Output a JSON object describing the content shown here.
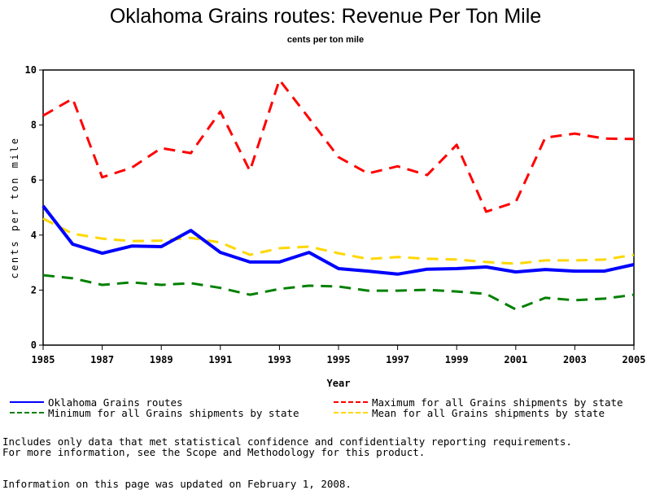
{
  "chart_data": {
    "type": "line",
    "title": "Oklahoma Grains routes: Revenue Per Ton Mile",
    "subtitle": "cents per ton mile",
    "xlabel": "Year",
    "ylabel": "cents per ton mile",
    "x": [
      1985,
      1986,
      1987,
      1988,
      1989,
      1990,
      1991,
      1992,
      1993,
      1994,
      1995,
      1996,
      1997,
      1998,
      1999,
      2000,
      2001,
      2002,
      2003,
      2004,
      2005
    ],
    "xlim": [
      1985,
      2005
    ],
    "ylim": [
      0,
      10
    ],
    "x_ticks": [
      1985,
      1987,
      1989,
      1991,
      1993,
      1995,
      1997,
      1999,
      2001,
      2003,
      2005
    ],
    "y_ticks": [
      0,
      2,
      4,
      6,
      8,
      10
    ],
    "grid": false,
    "legend_position": "bottom",
    "series": [
      {
        "name": "Oklahoma Grains routes",
        "color": "#0000ff",
        "style": "solid",
        "values": [
          5.06,
          3.67,
          3.34,
          3.6,
          3.58,
          4.17,
          3.37,
          3.02,
          3.02,
          3.37,
          2.78,
          2.69,
          2.58,
          2.76,
          2.78,
          2.84,
          2.66,
          2.75,
          2.69,
          2.69,
          2.93
        ]
      },
      {
        "name": "Maximum for all Grains shipments by state",
        "color": "#ff0000",
        "style": "dashed",
        "values": [
          8.34,
          8.96,
          6.1,
          6.45,
          7.16,
          6.98,
          8.49,
          6.33,
          9.64,
          8.25,
          6.83,
          6.24,
          6.5,
          6.18,
          7.28,
          4.85,
          5.2,
          7.54,
          7.69,
          7.51,
          7.49
        ]
      },
      {
        "name": "Minimum for all Grains shipments by state",
        "color": "#008000",
        "style": "dashed",
        "values": [
          2.54,
          2.43,
          2.19,
          2.28,
          2.19,
          2.25,
          2.08,
          1.83,
          2.04,
          2.16,
          2.13,
          1.98,
          1.98,
          2.01,
          1.95,
          1.86,
          1.3,
          1.72,
          1.63,
          1.69,
          1.83
        ]
      },
      {
        "name": "Mean for all Grains shipments by state",
        "color": "#ffd700",
        "style": "dashed",
        "values": [
          4.6,
          4.05,
          3.87,
          3.78,
          3.8,
          3.9,
          3.73,
          3.28,
          3.52,
          3.58,
          3.34,
          3.13,
          3.2,
          3.14,
          3.11,
          3.02,
          2.96,
          3.08,
          3.08,
          3.11,
          3.28
        ]
      }
    ]
  },
  "legend": {
    "items": [
      {
        "label": "Oklahoma Grains routes",
        "color": "#0000ff",
        "style": "solid"
      },
      {
        "label": "Maximum for all Grains shipments by state",
        "color": "#ff0000",
        "style": "dashed"
      },
      {
        "label": "Minimum for all Grains shipments by state",
        "color": "#008000",
        "style": "dashed"
      },
      {
        "label": "Mean for all Grains shipments by state",
        "color": "#ffd700",
        "style": "dashed"
      }
    ]
  },
  "notes": {
    "line1": "Includes only data that met statistical confidence and confidentialty reporting requirements.",
    "line2": "For more information, see the Scope and Methodology for this product.",
    "updated": "Information on this page was updated on February 1, 2008."
  }
}
